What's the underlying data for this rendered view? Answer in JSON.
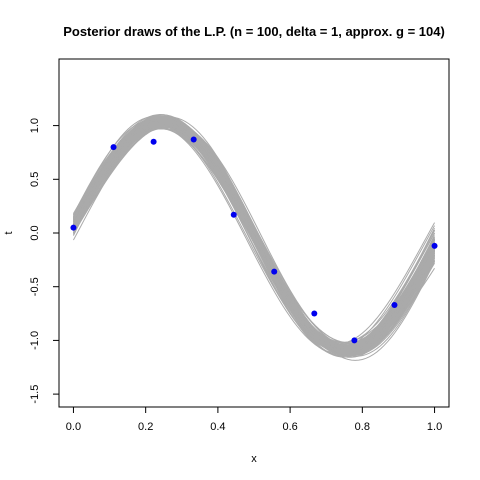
{
  "chart_data": {
    "type": "line",
    "title": "Posterior draws of the L.P. (n = 100, delta = 1, approx. g = 104)",
    "xlabel": "x",
    "ylabel": "t",
    "xlim": [
      -0.04,
      1.04
    ],
    "ylim": [
      -1.62,
      1.62
    ],
    "x_ticks": [
      0.0,
      0.2,
      0.4,
      0.6,
      0.8,
      1.0
    ],
    "x_tick_labels": [
      "0.0",
      "0.2",
      "0.4",
      "0.6",
      "0.8",
      "1.0"
    ],
    "y_ticks": [
      -1.5,
      -1.0,
      -0.5,
      0.0,
      0.5,
      1.0
    ],
    "y_tick_labels": [
      "-1.5",
      "-1.0",
      "-0.5",
      "0.0",
      "0.5",
      "1.0"
    ],
    "draw_count": 100,
    "draw_color": "#aaaaaa",
    "point_color": "#0000ee",
    "points": {
      "x": [
        0.0,
        0.111,
        0.222,
        0.333,
        0.444,
        0.556,
        0.667,
        0.778,
        0.889,
        1.0
      ],
      "y": [
        0.05,
        0.8,
        0.85,
        0.87,
        0.17,
        -0.36,
        -0.75,
        -1.0,
        -0.67,
        -0.12
      ]
    }
  }
}
